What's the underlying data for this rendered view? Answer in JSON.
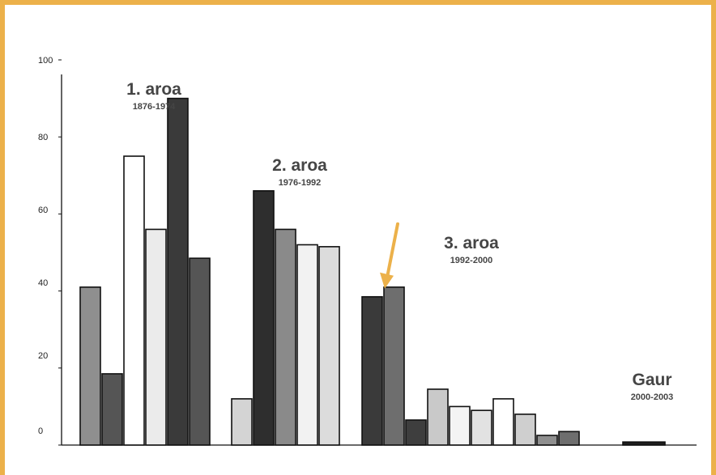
{
  "chart_data": {
    "type": "bar",
    "title": "",
    "xlabel": "",
    "ylabel": "",
    "ylim": [
      0,
      100
    ],
    "y_ticks": [
      "100",
      "80",
      "60",
      "40",
      "20",
      "0"
    ],
    "grid": false,
    "legend": "none",
    "groups": [
      {
        "label": "1. aroa",
        "years": "1876-1974",
        "bars": [
          {
            "value": 41,
            "color": "#8f8f8f"
          },
          {
            "value": 18.5,
            "color": "#555555"
          },
          {
            "value": 75,
            "color": "#ffffff"
          },
          {
            "value": 56,
            "color": "#ebebeb"
          },
          {
            "value": 90,
            "color": "#3a3a3a"
          },
          {
            "value": 48.5,
            "color": "#555555"
          }
        ]
      },
      {
        "label": "2. aroa",
        "years": "1976-1992",
        "bars": [
          {
            "value": 12,
            "color": "#d4d4d4"
          },
          {
            "value": 66,
            "color": "#2e2e2e"
          },
          {
            "value": 56,
            "color": "#8a8a8a"
          },
          {
            "value": 52,
            "color": "#f2f2f2"
          },
          {
            "value": 51.5,
            "color": "#dcdcdc"
          }
        ]
      },
      {
        "label": "3. aroa",
        "years": "1992-2000",
        "bars": [
          {
            "value": 38.5,
            "color": "#3a3a3a"
          },
          {
            "value": 41,
            "color": "#6e6e6e"
          },
          {
            "value": 6.5,
            "color": "#3e3e3e"
          },
          {
            "value": 14.5,
            "color": "#c9c9c9"
          },
          {
            "value": 10,
            "color": "#f4f4f4"
          },
          {
            "value": 9,
            "color": "#e2e2e2"
          },
          {
            "value": 12,
            "color": "#ffffff"
          },
          {
            "value": 8,
            "color": "#cfcfcf"
          },
          {
            "value": 2.5,
            "color": "#8f8f8f"
          },
          {
            "value": 3.5,
            "color": "#6e6e6e"
          }
        ]
      },
      {
        "label": "Gaur",
        "years": "2000-2003",
        "bars": [
          {
            "value": 0.8,
            "color": "#1e1e1e"
          }
        ]
      }
    ],
    "annotation": {
      "type": "arrow",
      "target_group": 2,
      "target_bar": 0,
      "color": "#ecb14a"
    }
  }
}
